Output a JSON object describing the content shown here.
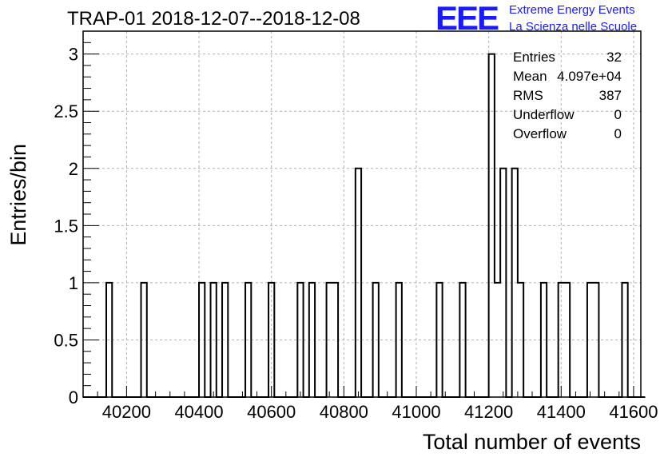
{
  "chart_data": {
    "type": "bar",
    "title": "TRAP-01 2018-12-07--2018-12-08",
    "xlabel": "Total number of events",
    "ylabel": "Entries/bin",
    "xlim": [
      40080,
      41620
    ],
    "ylim": [
      0,
      3.2
    ],
    "bin_width": 16,
    "x_ticks": [
      40200,
      40400,
      40600,
      40800,
      41000,
      41200,
      41400,
      41600
    ],
    "y_ticks": [
      0,
      0.5,
      1,
      1.5,
      2,
      2.5,
      3
    ],
    "y_tick_labels": [
      "0",
      "0.5",
      "1",
      "1.5",
      "2",
      "2.5",
      "3"
    ],
    "grid": true,
    "bins": [
      {
        "x": 40144,
        "count": 1
      },
      {
        "x": 40240,
        "count": 1
      },
      {
        "x": 40400,
        "count": 1
      },
      {
        "x": 40432,
        "count": 1
      },
      {
        "x": 40464,
        "count": 1
      },
      {
        "x": 40528,
        "count": 1
      },
      {
        "x": 40592,
        "count": 1
      },
      {
        "x": 40672,
        "count": 1
      },
      {
        "x": 40704,
        "count": 1
      },
      {
        "x": 40752,
        "count": 1
      },
      {
        "x": 40768,
        "count": 1
      },
      {
        "x": 40832,
        "count": 2
      },
      {
        "x": 40880,
        "count": 1
      },
      {
        "x": 40944,
        "count": 1
      },
      {
        "x": 41056,
        "count": 1
      },
      {
        "x": 41120,
        "count": 1
      },
      {
        "x": 41200,
        "count": 3
      },
      {
        "x": 41216,
        "count": 1
      },
      {
        "x": 41232,
        "count": 2
      },
      {
        "x": 41264,
        "count": 2
      },
      {
        "x": 41280,
        "count": 1
      },
      {
        "x": 41344,
        "count": 1
      },
      {
        "x": 41392,
        "count": 1
      },
      {
        "x": 41408,
        "count": 1
      },
      {
        "x": 41472,
        "count": 1
      },
      {
        "x": 41488,
        "count": 1
      },
      {
        "x": 41568,
        "count": 1
      }
    ],
    "stats_box": {
      "position": "top-right",
      "rows": [
        {
          "label": "Entries",
          "value": "32"
        },
        {
          "label": "Mean",
          "value": "4.097e+04"
        },
        {
          "label": "RMS",
          "value": "387"
        },
        {
          "label": "Underflow",
          "value": "0"
        },
        {
          "label": "Overflow",
          "value": "0"
        }
      ]
    },
    "colors": {
      "line": "#000000",
      "grid": "#b0b0b0",
      "logo": "#1a1aff"
    }
  },
  "logo": {
    "mark": "EEE",
    "line1": "Extreme Energy Events",
    "line2": "La Scienza nelle Scuole"
  }
}
